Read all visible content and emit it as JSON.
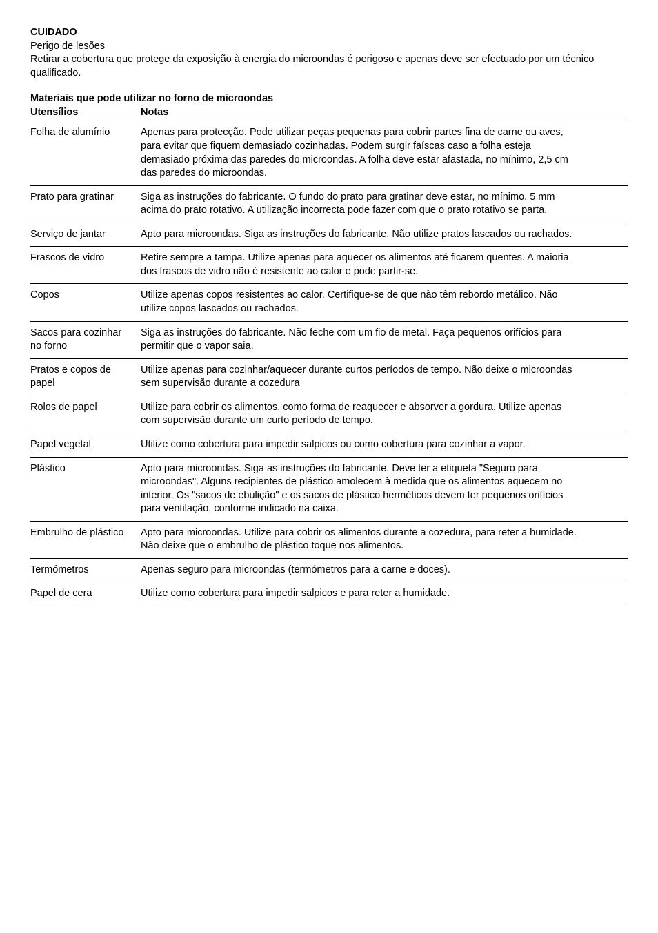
{
  "document": {
    "heading": "CUIDADO",
    "subheading": "Perigo de lesões",
    "intro": "Retirar a cobertura que protege da exposição à energia do microondas é perigoso e apenas deve ser efectuado por um técnico qualificado.",
    "table_title": "Materiais que pode utilizar no forno de microondas",
    "col1_header": "Utensílios",
    "col2_header": "Notas",
    "rows": [
      {
        "utensil": "Folha de alumínio",
        "notes": "Apenas para protecção. Pode utilizar peças pequenas para cobrir partes fina de carne ou aves, para evitar que fiquem demasiado cozinhadas. Podem surgir faíscas caso a folha esteja demasiado próxima das paredes do microondas. A folha deve estar afastada, no mínimo, 2,5 cm das paredes do microondas."
      },
      {
        "utensil": "Prato para gratinar",
        "notes": "Siga as instruções do fabricante. O fundo do prato para gratinar deve estar, no mínimo, 5 mm acima do prato rotativo. A utilização incorrecta pode fazer com que o prato rotativo se parta."
      },
      {
        "utensil": "Serviço de jantar",
        "notes": "Apto para microondas. Siga as instruções do fabricante. Não utilize pratos lascados ou rachados."
      },
      {
        "utensil": "Frascos de vidro",
        "notes": "Retire sempre a tampa. Utilize apenas para aquecer os alimentos até ficarem quentes. A maioria dos frascos de vidro não é resistente ao calor e pode partir-se."
      },
      {
        "utensil": "Copos",
        "notes": "Utilize apenas copos resistentes ao calor. Certifique-se de que não têm rebordo metálico. Não utilize copos lascados ou rachados."
      },
      {
        "utensil": "Sacos para cozinhar no forno",
        "notes": "Siga as instruções do fabricante. Não feche com um fio de metal. Faça pequenos orifícios para permitir que o vapor saia."
      },
      {
        "utensil": "Pratos e copos de papel",
        "notes": "Utilize apenas para cozinhar/aquecer durante curtos períodos de tempo. Não deixe o microondas sem supervisão durante a cozedura"
      },
      {
        "utensil": "Rolos de papel",
        "notes": "Utilize para cobrir os alimentos, como forma de reaquecer e absorver a gordura. Utilize apenas com supervisão durante um curto período de tempo."
      },
      {
        "utensil": "Papel vegetal",
        "notes": "Utilize como cobertura para impedir salpicos ou como cobertura para cozinhar a vapor."
      },
      {
        "utensil": "Plástico",
        "notes": "Apto para microondas. Siga as instruções do fabricante. Deve ter a etiqueta \"Seguro para microondas\". Alguns recipientes de plástico amolecem à medida que os alimentos aquecem no interior. Os \"sacos de ebulição\" e os sacos de plástico herméticos devem ter pequenos orifícios para ventilação, conforme indicado na caixa."
      },
      {
        "utensil": "Embrulho de plástico",
        "notes": "Apto para microondas. Utilize para cobrir os alimentos durante a cozedura, para reter a humidade. Não deixe que o embrulho de plástico toque nos alimentos."
      },
      {
        "utensil": "Termómetros",
        "notes": "Apenas seguro para microondas (termómetros para a carne e doces)."
      },
      {
        "utensil": "Papel de cera",
        "notes": "Utilize como cobertura para impedir salpicos e para reter a humidade."
      }
    ]
  }
}
